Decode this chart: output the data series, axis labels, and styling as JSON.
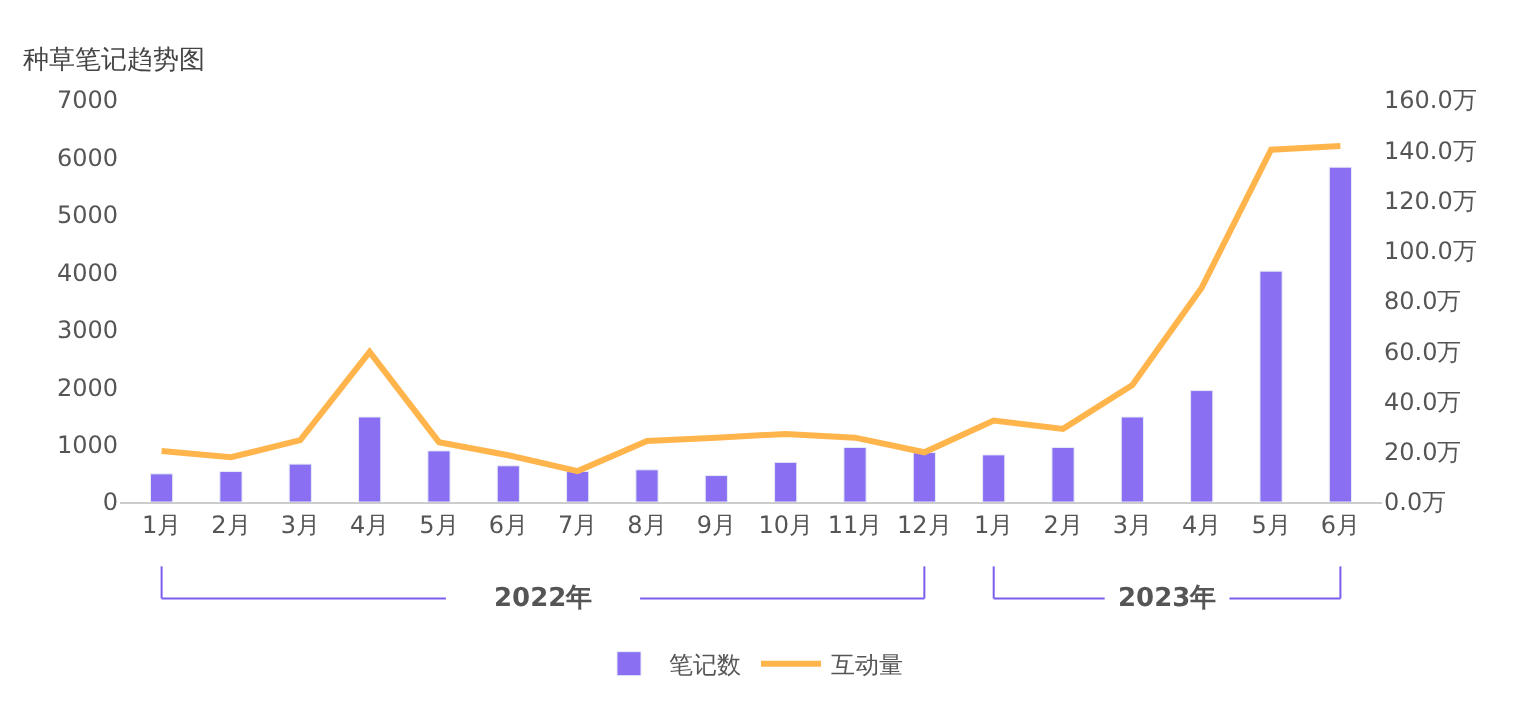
{
  "chart_data": {
    "type": "bar",
    "title": "种草笔记趋势图",
    "categories": [
      "1月",
      "2月",
      "3月",
      "4月",
      "5月",
      "6月",
      "7月",
      "8月",
      "9月",
      "10月",
      "11月",
      "12月",
      "1月",
      "2月",
      "3月",
      "4月",
      "5月",
      "6月"
    ],
    "series": [
      {
        "name": "笔记数",
        "color": "#8a6ff2",
        "values": [
          490,
          530,
          660,
          1480,
          890,
          630,
          530,
          560,
          460,
          690,
          950,
          860,
          820,
          950,
          1480,
          1940,
          4020,
          5830
        ]
      },
      {
        "name": "互动量",
        "type": "line",
        "axis": "y2",
        "color": "#ffb54c",
        "values": [
          20.3,
          17.8,
          24.6,
          59.7,
          23.8,
          18.6,
          12.3,
          24.3,
          25.6,
          27.1,
          25.6,
          19.8,
          32.4,
          29.1,
          46.6,
          85.3,
          140.2,
          141.7
        ]
      }
    ],
    "ylim": [
      0,
      7000
    ],
    "yticks": [
      0,
      1000,
      2000,
      3000,
      4000,
      5000,
      6000,
      7000
    ],
    "y2lim": [
      0,
      160
    ],
    "y2ticks": [
      {
        "value": 0,
        "label": "0.0万"
      },
      {
        "value": 20,
        "label": "20.0万"
      },
      {
        "value": 40,
        "label": "40.0万"
      },
      {
        "value": 60,
        "label": "60.0万"
      },
      {
        "value": 80,
        "label": "80.0万"
      },
      {
        "value": 100,
        "label": "100.0万"
      },
      {
        "value": 120,
        "label": "120.0万"
      },
      {
        "value": 140,
        "label": "140.0万"
      },
      {
        "value": 160,
        "label": "160.0万"
      }
    ],
    "annotations": [
      "2022年",
      "2023年"
    ],
    "legend": "bottom",
    "marker": "none",
    "line_style": "solid"
  }
}
